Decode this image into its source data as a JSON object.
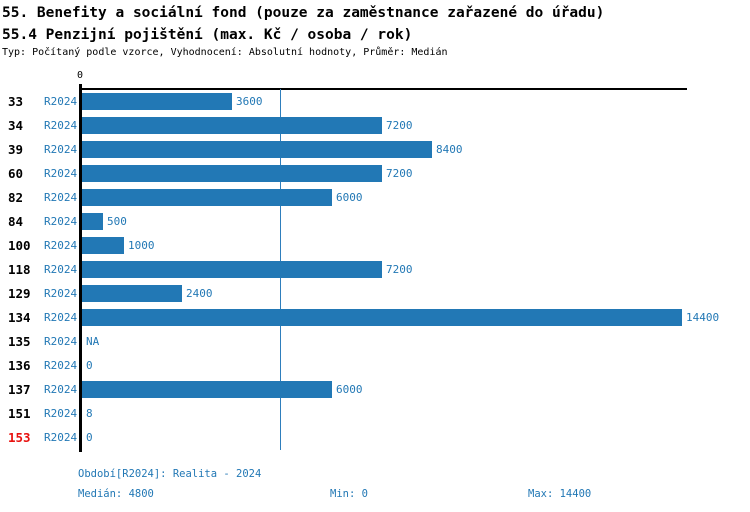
{
  "title_line1": "55. Benefity a sociální fond (pouze za zaměstnance zařazené do úřadu)",
  "title_line2": "55.4 Penzijní pojištění (max. Kč / osoba / rok)",
  "subtitle": "Typ: Počítaný podle vzorce, Vyhodnocení: Absolutní hodnoty, Průměr: Medián",
  "axis": {
    "zero_label": "0"
  },
  "chart_data": {
    "type": "bar",
    "orientation": "horizontal",
    "title": "55.4 Penzijní pojištění (max. Kč / osoba / rok)",
    "series_label": "R2024",
    "categories": [
      "33",
      "34",
      "39",
      "60",
      "82",
      "84",
      "100",
      "118",
      "129",
      "134",
      "135",
      "136",
      "137",
      "151",
      "153"
    ],
    "values": [
      3600,
      7200,
      8400,
      7200,
      6000,
      500,
      1000,
      7200,
      2400,
      14400,
      null,
      0,
      6000,
      8,
      0
    ],
    "value_labels": [
      "3600",
      "7200",
      "8400",
      "7200",
      "6000",
      "500",
      "1000",
      "7200",
      "2400",
      "14400",
      "NA",
      "0",
      "6000",
      "8",
      "0"
    ],
    "highlighted_categories": [
      "153"
    ],
    "xlim": [
      0,
      14400
    ],
    "median_value": 4800,
    "min_value": 0,
    "max_value": 14400,
    "grid": false,
    "legend_position": "none",
    "bar_color": "#2278b5",
    "label_color": "#2278b5",
    "highlight_color": "#e8110f",
    "median_line_color": "#2e7ebc"
  },
  "footer": {
    "period": "Období[R2024]: Realita - 2024",
    "median": "Medián: 4800",
    "min": "Min: 0",
    "max": "Max: 14400"
  }
}
